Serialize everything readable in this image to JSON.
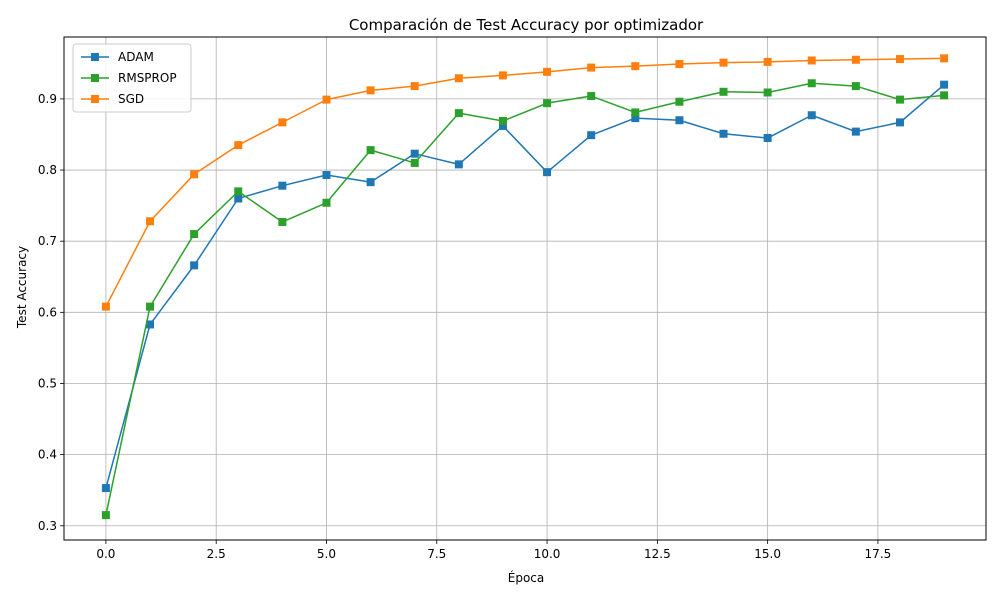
{
  "chart_data": {
    "type": "line",
    "title": "Comparación de Test Accuracy por optimizador",
    "xlabel": "Época",
    "ylabel": "Test Accuracy",
    "xlim": [
      -0.95,
      19.95
    ],
    "ylim": [
      0.28,
      0.987
    ],
    "xticks": [
      0.0,
      2.5,
      5.0,
      7.5,
      10.0,
      12.5,
      15.0,
      17.5
    ],
    "xtick_labels": [
      "0.0",
      "2.5",
      "5.0",
      "7.5",
      "10.0",
      "12.5",
      "15.0",
      "17.5"
    ],
    "yticks": [
      0.3,
      0.4,
      0.5,
      0.6,
      0.7,
      0.8,
      0.9
    ],
    "ytick_labels": [
      "0.3",
      "0.4",
      "0.5",
      "0.6",
      "0.7",
      "0.8",
      "0.9"
    ],
    "grid": true,
    "legend_position": "upper-left",
    "marker": "square",
    "x": [
      0,
      1,
      2,
      3,
      4,
      5,
      6,
      7,
      8,
      9,
      10,
      11,
      12,
      13,
      14,
      15,
      16,
      17,
      18,
      19
    ],
    "series": [
      {
        "name": "ADAM",
        "color": "#1f77b4",
        "values": [
          0.353,
          0.583,
          0.666,
          0.76,
          0.778,
          0.793,
          0.783,
          0.823,
          0.808,
          0.862,
          0.797,
          0.849,
          0.873,
          0.87,
          0.851,
          0.845,
          0.877,
          0.854,
          0.867,
          0.92
        ]
      },
      {
        "name": "RMSPROP",
        "color": "#2ca02c",
        "values": [
          0.315,
          0.608,
          0.71,
          0.77,
          0.727,
          0.754,
          0.828,
          0.81,
          0.88,
          0.869,
          0.894,
          0.904,
          0.881,
          0.896,
          0.91,
          0.909,
          0.922,
          0.918,
          0.899,
          0.905
        ]
      },
      {
        "name": "SGD",
        "color": "#ff7f0e",
        "values": [
          0.608,
          0.728,
          0.794,
          0.835,
          0.867,
          0.899,
          0.912,
          0.918,
          0.929,
          0.933,
          0.938,
          0.944,
          0.946,
          0.949,
          0.951,
          0.952,
          0.954,
          0.955,
          0.956,
          0.957
        ]
      }
    ]
  }
}
